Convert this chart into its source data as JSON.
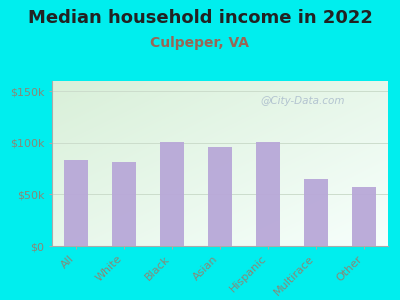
{
  "title": "Median household income in 2022",
  "subtitle": "Culpeper, VA",
  "categories": [
    "All",
    "White",
    "Black",
    "Asian",
    "Hispanic",
    "Multirace",
    "Other"
  ],
  "values": [
    83000,
    81000,
    101000,
    96000,
    101000,
    65000,
    57000
  ],
  "bar_color": "#b8a8d8",
  "background_outer": "#00eeee",
  "ylim": [
    0,
    160000
  ],
  "yticks": [
    0,
    50000,
    100000,
    150000
  ],
  "ytick_labels": [
    "$0",
    "$50k",
    "$100k",
    "$150k"
  ],
  "title_fontsize": 13,
  "subtitle_fontsize": 10,
  "title_color": "#222222",
  "subtitle_color": "#996655",
  "tick_label_color": "#888877",
  "watermark": "@City-Data.com",
  "watermark_color": "#aabbcc",
  "chart_bg_colors": [
    "#d8edd8",
    "#f8ffff"
  ],
  "grid_color": "#ccddcc"
}
